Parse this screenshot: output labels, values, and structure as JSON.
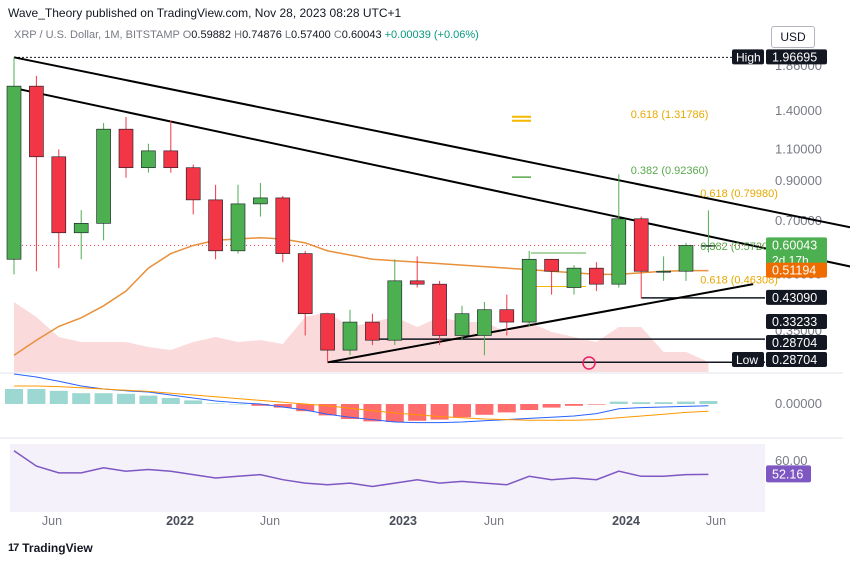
{
  "header": {
    "publisher": "Wave_Theory published on TradingView.com, Nov 28, 2023 08:28 UTC+1",
    "symbol": "XRP / U.S. Dollar, 1M, BITSTAMP",
    "ohlc": {
      "o_label": "O",
      "o": "0.59882",
      "h_label": "H",
      "h": "0.74876",
      "l_label": "L",
      "l": "0.57400",
      "c_label": "C",
      "c": "0.60043",
      "change": "+0.00039 (+0.06%)"
    },
    "currency": "USD"
  },
  "footer": {
    "logo_mark": "17",
    "logo_text": "TradingView"
  },
  "colors": {
    "up": "#4caf50",
    "down": "#f23645",
    "ma": "#e8903a",
    "fib_gold": "#f5b800",
    "fib_green": "#5aa84c",
    "rsi": "#7e57c2",
    "macd": "#2962ff",
    "signal": "#ff9800",
    "hist_up": "#26a69a",
    "hist_down": "#ff5252"
  },
  "chart_data": [
    {
      "type": "candlestick",
      "title": "XRP / U.S. Dollar, 1M, BITSTAMP",
      "scale": "log",
      "ylim": [
        0.27,
        2.06
      ],
      "x_ticks": [
        "Jun",
        "2022",
        "Jun",
        "2023",
        "Jun",
        "2024",
        "Jun"
      ],
      "y_ticks": [
        "1.86000",
        "1.40000",
        "1.10000",
        "0.90000",
        "0.70000",
        "0.50000",
        "0.35000"
      ],
      "candles": [
        {
          "o": 0.55,
          "h": 1.96695,
          "l": 0.5,
          "c": 1.64
        },
        {
          "o": 1.64,
          "h": 1.75,
          "l": 0.51,
          "c": 1.05
        },
        {
          "o": 1.05,
          "h": 1.1,
          "l": 0.52,
          "c": 0.65
        },
        {
          "o": 0.65,
          "h": 0.75,
          "l": 0.55,
          "c": 0.69
        },
        {
          "o": 0.69,
          "h": 1.3,
          "l": 0.62,
          "c": 1.25
        },
        {
          "o": 1.25,
          "h": 1.35,
          "l": 0.92,
          "c": 0.98
        },
        {
          "o": 0.98,
          "h": 1.14,
          "l": 0.95,
          "c": 1.09
        },
        {
          "o": 1.09,
          "h": 1.32,
          "l": 0.95,
          "c": 0.98
        },
        {
          "o": 0.98,
          "h": 1.0,
          "l": 0.73,
          "c": 0.8
        },
        {
          "o": 0.8,
          "h": 0.88,
          "l": 0.55,
          "c": 0.58
        },
        {
          "o": 0.58,
          "h": 0.88,
          "l": 0.57,
          "c": 0.78
        },
        {
          "o": 0.78,
          "h": 0.89,
          "l": 0.72,
          "c": 0.81
        },
        {
          "o": 0.81,
          "h": 0.82,
          "l": 0.54,
          "c": 0.57
        },
        {
          "o": 0.57,
          "h": 0.58,
          "l": 0.34,
          "c": 0.39
        },
        {
          "o": 0.39,
          "h": 0.39,
          "l": 0.28704,
          "c": 0.31
        },
        {
          "o": 0.31,
          "h": 0.4,
          "l": 0.3,
          "c": 0.37
        },
        {
          "o": 0.37,
          "h": 0.39,
          "l": 0.32,
          "c": 0.33
        },
        {
          "o": 0.33,
          "h": 0.55,
          "l": 0.32,
          "c": 0.48
        },
        {
          "o": 0.48,
          "h": 0.56,
          "l": 0.46,
          "c": 0.47
        },
        {
          "o": 0.47,
          "h": 0.48,
          "l": 0.32,
          "c": 0.34
        },
        {
          "o": 0.34,
          "h": 0.41,
          "l": 0.33,
          "c": 0.39
        },
        {
          "o": 0.34,
          "h": 0.42,
          "l": 0.3,
          "c": 0.4
        },
        {
          "o": 0.4,
          "h": 0.44,
          "l": 0.34,
          "c": 0.37
        },
        {
          "o": 0.37,
          "h": 0.58,
          "l": 0.36,
          "c": 0.55
        },
        {
          "o": 0.55,
          "h": 0.55,
          "l": 0.44,
          "c": 0.51
        },
        {
          "o": 0.46,
          "h": 0.53,
          "l": 0.44,
          "c": 0.52
        },
        {
          "o": 0.52,
          "h": 0.54,
          "l": 0.45,
          "c": 0.47
        },
        {
          "o": 0.47,
          "h": 0.94,
          "l": 0.46,
          "c": 0.71
        },
        {
          "o": 0.71,
          "h": 0.72,
          "l": 0.43,
          "c": 0.51
        },
        {
          "o": 0.51,
          "h": 0.56,
          "l": 0.48,
          "c": 0.51
        },
        {
          "o": 0.51,
          "h": 0.61,
          "l": 0.48,
          "c": 0.6
        },
        {
          "o": 0.59882,
          "h": 0.74876,
          "l": 0.574,
          "c": 0.60043
        }
      ],
      "moving_average": [
        0.3,
        0.33,
        0.36,
        0.38,
        0.41,
        0.45,
        0.52,
        0.57,
        0.6,
        0.62,
        0.625,
        0.63,
        0.625,
        0.61,
        0.58,
        0.565,
        0.55,
        0.545,
        0.54,
        0.535,
        0.53,
        0.525,
        0.52,
        0.515,
        0.51,
        0.505,
        0.5,
        0.5,
        0.505,
        0.51,
        0.512,
        0.51194
      ],
      "trendlines": [
        {
          "from": {
            "i": 0,
            "p": 1.96695
          },
          "to": {
            "i": 38,
            "p": 0.66
          }
        },
        {
          "from": {
            "i": 0,
            "p": 1.62
          },
          "to": {
            "i": 38,
            "p": 0.515
          }
        },
        {
          "from": {
            "i": 14,
            "p": 0.28704
          },
          "to": {
            "i": 33,
            "p": 0.47
          }
        }
      ],
      "horizontal_levels": [
        {
          "price": 1.96695,
          "style": "dotted",
          "from_i": 0
        },
        {
          "price": 0.4309,
          "style": "solid",
          "from_i": 28
        },
        {
          "price": 0.33233,
          "style": "solid",
          "from_i": 16
        },
        {
          "price": 0.28704,
          "style": "solid",
          "from_i": 14
        }
      ],
      "fib_labels": [
        {
          "text": "0.618 (1.31786)",
          "price": 1.31786,
          "color": "gold",
          "x_i": 27.4
        },
        {
          "text": "0.382 (0.92360)",
          "price": 0.9236,
          "color": "green",
          "x_i": 27.4
        },
        {
          "text": "0.618 (0.79980)",
          "price": 0.7998,
          "color": "gold",
          "x_i": 30.5
        },
        {
          "text": "0.382 (0.57209)",
          "price": 0.57209,
          "color": "green",
          "x_i": 30.5
        },
        {
          "text": "0.618 (0.46308)",
          "price": 0.46308,
          "color": "gold",
          "x_i": 30.5
        }
      ],
      "price_labels": [
        {
          "text": "High",
          "value": "1.96695",
          "style": "dark",
          "price": 1.96695
        },
        {
          "text": "",
          "value": "0.60043",
          "sub": "2d 17h",
          "style": "green",
          "price": 0.60043
        },
        {
          "text": "",
          "value": "0.51194",
          "style": "orange",
          "price": 0.51194
        },
        {
          "text": "",
          "value": "0.43090",
          "style": "dark",
          "price": 0.4309
        },
        {
          "text": "",
          "value": "0.33233",
          "style": "dark",
          "price": 0.33233
        },
        {
          "text": "",
          "value": "0.28704",
          "style": "dark",
          "price": 0.28704
        },
        {
          "text": "Low",
          "value": "0.28704",
          "style": "dark",
          "price": 0.28704
        }
      ],
      "volume": [
        0.7,
        0.55,
        0.35,
        0.3,
        0.3,
        0.3,
        0.25,
        0.22,
        0.3,
        0.35,
        0.3,
        0.32,
        0.28,
        0.55,
        0.6,
        0.45,
        0.5,
        0.55,
        0.45,
        0.55,
        0.5,
        0.5,
        0.4,
        0.5,
        0.4,
        0.35,
        0.3,
        0.45,
        0.45,
        0.2,
        0.2,
        0.1
      ]
    },
    {
      "type": "bar",
      "title": "MACD",
      "y_ticks": [
        "0.00000"
      ],
      "histogram": [
        0.25,
        0.25,
        0.22,
        0.18,
        0.18,
        0.17,
        0.14,
        0.1,
        0.06,
        0.01,
        0.0,
        -0.03,
        -0.06,
        -0.12,
        -0.19,
        -0.25,
        -0.29,
        -0.3,
        -0.28,
        -0.26,
        -0.22,
        -0.18,
        -0.14,
        -0.1,
        -0.06,
        -0.03,
        -0.01,
        0.04,
        0.03,
        0.03,
        0.04,
        0.05
      ],
      "macd": [
        0.5,
        0.45,
        0.38,
        0.3,
        0.25,
        0.22,
        0.2,
        0.15,
        0.1,
        0.05,
        0.02,
        0.0,
        -0.05,
        -0.1,
        -0.17,
        -0.22,
        -0.26,
        -0.3,
        -0.31,
        -0.31,
        -0.3,
        -0.28,
        -0.26,
        -0.24,
        -0.22,
        -0.2,
        -0.16,
        -0.08,
        -0.06,
        -0.05,
        -0.04,
        -0.03
      ],
      "signal": [
        0.3,
        0.3,
        0.29,
        0.27,
        0.25,
        0.23,
        0.21,
        0.18,
        0.15,
        0.12,
        0.09,
        0.06,
        0.03,
        0.0,
        -0.03,
        -0.07,
        -0.11,
        -0.15,
        -0.18,
        -0.21,
        -0.23,
        -0.25,
        -0.26,
        -0.27,
        -0.27,
        -0.27,
        -0.26,
        -0.23,
        -0.2,
        -0.17,
        -0.14,
        -0.12
      ]
    },
    {
      "type": "line",
      "title": "RSI",
      "ylim": [
        30,
        70
      ],
      "y_ticks": [
        "60.00"
      ],
      "last_label": "52.16",
      "values": [
        66,
        57,
        53,
        53,
        56,
        54,
        55,
        54,
        52,
        50,
        51,
        52,
        49,
        47,
        46,
        47,
        45,
        47,
        49,
        47,
        48,
        47,
        46,
        51,
        49,
        50,
        49,
        54,
        51,
        51,
        52,
        52.16
      ]
    }
  ]
}
